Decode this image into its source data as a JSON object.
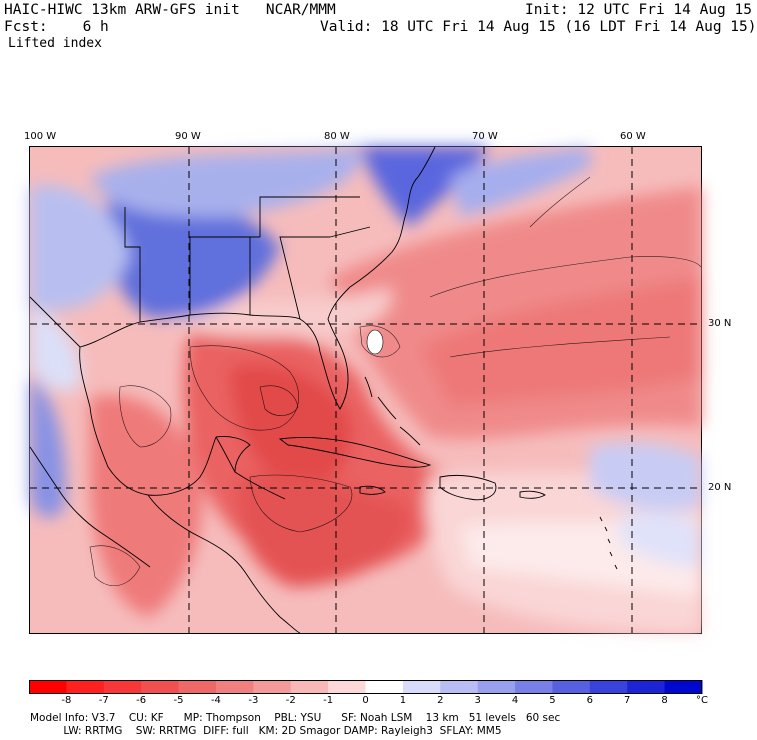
{
  "header": {
    "model_title": "HAIC-HIWC 13km ARW-GFS init   NCAR/MMM",
    "init": "Init: 12 UTC Fri 14 Aug 15",
    "fcst": "Fcst:    6 h",
    "valid": "Valid: 18 UTC Fri 14 Aug 15 (16 LDT Fri 14 Aug 15)",
    "field": "Lifted index"
  },
  "map": {
    "lon_labels": [
      "100 W",
      "90 W",
      "80 W",
      "70 W",
      "60 W"
    ],
    "lat_labels": [
      "30 N",
      "20 N"
    ],
    "colors": {
      "ocean_pink": "#f6b8b8",
      "land_red": "#ee6a6a",
      "deep_red": "#e04848",
      "pale": "#fbe0e0",
      "blue": "#5060e0",
      "light_blue": "#a8b0ee"
    }
  },
  "colorbar": {
    "labels": [
      "-8",
      "-7",
      "-6",
      "-5",
      "-4",
      "-3",
      "-2",
      "-1",
      "0",
      "1",
      "2",
      "3",
      "4",
      "5",
      "6",
      "7",
      "8"
    ],
    "unit": "°C",
    "colors": [
      "#ff0000",
      "#ff2020",
      "#f83838",
      "#f25050",
      "#ee6868",
      "#f08080",
      "#f49a9a",
      "#f8b8b8",
      "#fcd8d8",
      "#ffffff",
      "#d8dcfa",
      "#b8bef4",
      "#98a0ee",
      "#7880e8",
      "#5860e2",
      "#3a42dc",
      "#1c24d6",
      "#0008d0"
    ]
  },
  "model_info": {
    "line1": "Model Info: V3.7    CU: KF      MP: Thompson    PBL: YSU      SF: Noah LSM    13 km   51 levels   60 sec",
    "line2": "          LW: RRTMG    SW: RRTMG  DIFF: full   KM: 2D Smagor DAMP: Rayleigh3  SFLAY: MM5"
  }
}
